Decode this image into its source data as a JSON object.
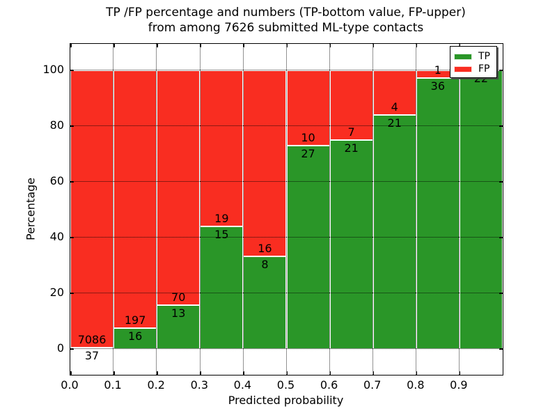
{
  "chart_data": {
    "type": "bar",
    "variant": "stacked-percentage",
    "title": "TP /FP percentage and numbers (TP-bottom value, FP-upper)",
    "subtitle": "from among 7626 submitted ML-type contacts",
    "total_contacts": 7626,
    "xlabel": "Predicted probability",
    "ylabel": "Percentage",
    "bin_edges": [
      0.0,
      0.1,
      0.2,
      0.3,
      0.4,
      0.5,
      0.6,
      0.7,
      0.8,
      0.9,
      1.0
    ],
    "series": [
      {
        "name": "TP",
        "color": "#2a9628",
        "values": [
          37,
          16,
          13,
          15,
          8,
          27,
          21,
          21,
          36,
          22
        ]
      },
      {
        "name": "FP",
        "color": "#f92d21",
        "values": [
          7086,
          197,
          70,
          19,
          16,
          10,
          7,
          4,
          1,
          0
        ]
      }
    ],
    "tp_percent": [
      0.5,
      7.5,
      15.7,
      44.1,
      33.3,
      73.0,
      75.0,
      84.0,
      97.3,
      100.0
    ],
    "xticks": [
      "0.0",
      "0.1",
      "0.2",
      "0.3",
      "0.4",
      "0.5",
      "0.6",
      "0.7",
      "0.8",
      "0.9"
    ],
    "yticks": [
      0,
      20,
      40,
      60,
      80,
      100
    ],
    "xlim": [
      0.0,
      1.0
    ],
    "ylim": [
      -9.25,
      109.5
    ],
    "grid": true,
    "legend": {
      "position": "upper-right",
      "entries": [
        {
          "label": "TP",
          "color": "#2a9628"
        },
        {
          "label": "FP",
          "color": "#f92d21"
        }
      ]
    }
  }
}
